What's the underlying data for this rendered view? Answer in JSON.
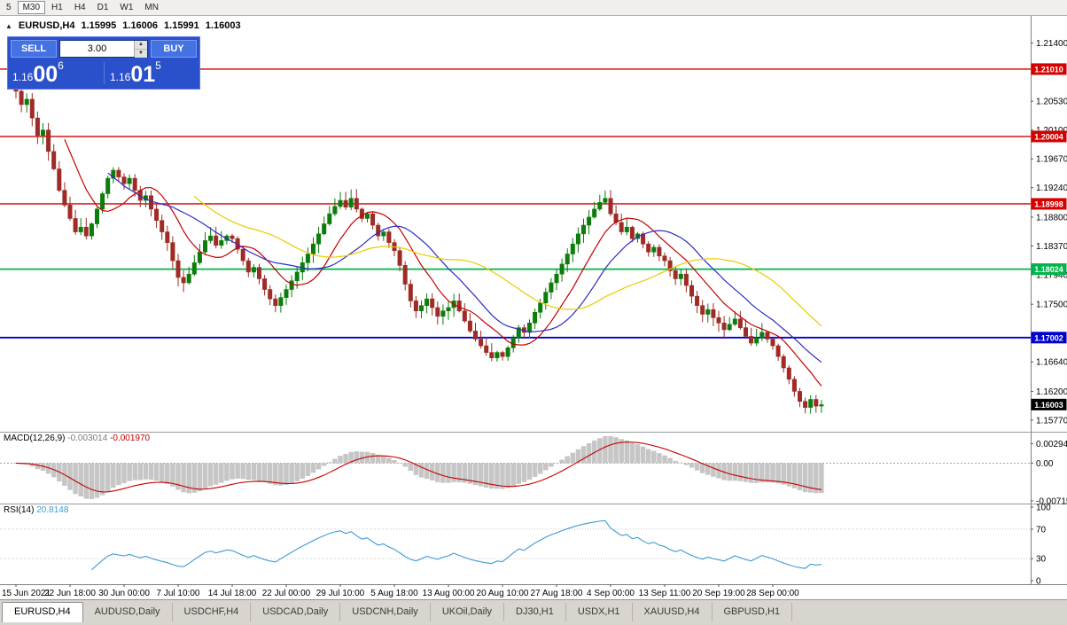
{
  "toolbar": {
    "timeframes": [
      {
        "label": "5",
        "active": false
      },
      {
        "label": "M30",
        "active": true
      },
      {
        "label": "H1",
        "active": false
      },
      {
        "label": "H4",
        "active": false
      },
      {
        "label": "D1",
        "active": false
      },
      {
        "label": "W1",
        "active": false
      },
      {
        "label": "MN",
        "active": false
      }
    ]
  },
  "chart_header": {
    "symbol": "EURUSD,H4",
    "open": "1.15995",
    "high": "1.16006",
    "low": "1.15991",
    "close": "1.16003"
  },
  "trade_panel": {
    "sell_label": "SELL",
    "buy_label": "BUY",
    "volume": "3.00",
    "sell_price_small": "1.16",
    "sell_price_big": "00",
    "sell_price_sup": "6",
    "buy_price_small": "1.16",
    "buy_price_big": "01",
    "buy_price_sup": "5"
  },
  "indicators": {
    "macd": {
      "name": "MACD(12,26,9)",
      "value1": "-0.003014",
      "value2": "-0.001970"
    },
    "rsi": {
      "name": "RSI(14)",
      "value": "20.8148"
    }
  },
  "tabs": [
    {
      "label": "EURUSD,H4",
      "active": true
    },
    {
      "label": "AUDUSD,Daily",
      "active": false
    },
    {
      "label": "USDCHF,H4",
      "active": false
    },
    {
      "label": "USDCAD,Daily",
      "active": false
    },
    {
      "label": "USDCNH,Daily",
      "active": false
    },
    {
      "label": "UKOil,Daily",
      "active": false
    },
    {
      "label": "DJ30,H1",
      "active": false
    },
    {
      "label": "USDX,H1",
      "active": false
    },
    {
      "label": "XAUUSD,H4",
      "active": false
    },
    {
      "label": "GBPUSD,H1",
      "active": false
    }
  ],
  "chart_data": [
    {
      "type": "candlestick",
      "symbol": "EURUSD",
      "timeframe": "H4",
      "title": "EURUSD,H4 1.15995 1.16006 1.15991 1.16003",
      "x_labels": [
        "15 Jun 2021",
        "22 Jun 18:00",
        "30 Jun 00:00",
        "7 Jul 10:00",
        "14 Jul 18:00",
        "22 Jul 00:00",
        "29 Jul 10:00",
        "5 Aug 18:00",
        "13 Aug 00:00",
        "20 Aug 10:00",
        "27 Aug 18:00",
        "4 Sep 00:00",
        "13 Sep 11:00",
        "20 Sep 19:00",
        "28 Sep 00:00"
      ],
      "y_tick_labels": [
        "1.21400",
        "1.20530",
        "1.20100",
        "1.19670",
        "1.19240",
        "1.18800",
        "1.18370",
        "1.17940",
        "1.17500",
        "1.16640",
        "1.16200",
        "1.15770"
      ],
      "y_range": [
        1.1565,
        1.2175
      ],
      "grid": false,
      "note": "close series estimated from pixels at ~H12 granularity; candles synthesized from consecutive closes",
      "closes": [
        1.2068,
        1.2048,
        1.2056,
        1.2028,
        1.2002,
        1.201,
        1.1978,
        1.1952,
        1.192,
        1.1898,
        1.1878,
        1.1858,
        1.1865,
        1.1852,
        1.187,
        1.1892,
        1.1915,
        1.1938,
        1.195,
        1.194,
        1.193,
        1.1938,
        1.192,
        1.1905,
        1.1912,
        1.1892,
        1.1875,
        1.1858,
        1.1842,
        1.1815,
        1.179,
        1.1782,
        1.1795,
        1.1812,
        1.1828,
        1.1845,
        1.1852,
        1.1838,
        1.1845,
        1.1852,
        1.1848,
        1.1832,
        1.1815,
        1.1798,
        1.1805,
        1.1788,
        1.1772,
        1.1758,
        1.1748,
        1.176,
        1.1772,
        1.1785,
        1.1798,
        1.1812,
        1.1825,
        1.184,
        1.1855,
        1.187,
        1.1885,
        1.1896,
        1.1905,
        1.1895,
        1.1908,
        1.1892,
        1.1878,
        1.1885,
        1.1868,
        1.1852,
        1.1858,
        1.1842,
        1.183,
        1.1808,
        1.178,
        1.1755,
        1.174,
        1.1748,
        1.1758,
        1.1745,
        1.1732,
        1.174,
        1.1745,
        1.1755,
        1.174,
        1.1725,
        1.171,
        1.1698,
        1.1688,
        1.1678,
        1.167,
        1.1678,
        1.1672,
        1.1685,
        1.17,
        1.1715,
        1.1708,
        1.1722,
        1.1738,
        1.1752,
        1.1768,
        1.1782,
        1.1795,
        1.181,
        1.1825,
        1.184,
        1.1855,
        1.1868,
        1.188,
        1.1892,
        1.1902,
        1.1908,
        1.1885,
        1.1872,
        1.1858,
        1.1865,
        1.1848,
        1.1855,
        1.184,
        1.1828,
        1.1835,
        1.1822,
        1.1815,
        1.18,
        1.1788,
        1.1795,
        1.1778,
        1.1762,
        1.1748,
        1.1735,
        1.1742,
        1.173,
        1.1722,
        1.1712,
        1.172,
        1.1728,
        1.1715,
        1.1702,
        1.1692,
        1.17,
        1.1708,
        1.1698,
        1.1688,
        1.1672,
        1.1655,
        1.1638,
        1.162,
        1.1605,
        1.1596,
        1.1608,
        1.1598,
        1.16
      ],
      "up_color": "#0a7d0a",
      "down_color": "#9e2b25",
      "moving_averages": [
        {
          "period": 10,
          "color": "#c40000",
          "name": "fast-ma"
        },
        {
          "period": 18,
          "color": "#2d2dc8",
          "name": "mid-ma"
        },
        {
          "period": 34,
          "color": "#e7cb00",
          "name": "slow-ma"
        }
      ],
      "horizontal_lines": [
        {
          "label": "1.21010",
          "price": 1.2101,
          "color": "#d40000"
        },
        {
          "label": "1.20004",
          "price": 1.20004,
          "color": "#d40000"
        },
        {
          "label": "1.18998",
          "price": 1.18998,
          "color": "#d40000"
        },
        {
          "label": "1.18024",
          "price": 1.18024,
          "color": "#00b44b"
        },
        {
          "label": "1.17002",
          "price": 1.17002,
          "color": "#0000cd"
        }
      ],
      "current_price": {
        "label": "1.16003",
        "price": 1.16003,
        "box_color": "#000000"
      }
    },
    {
      "type": "macd",
      "label": "MACD(12,26,9)",
      "params": [
        12,
        26,
        9
      ],
      "current_macd": -0.003014,
      "current_signal": -0.00197,
      "y_tick_labels": [
        "0.00294",
        "0.00",
        "-0.00715"
      ],
      "histogram_color": "#c6c6c6",
      "signal_color": "#c40000",
      "derived_from": "closes of panel above"
    },
    {
      "type": "rsi",
      "label": "RSI(14)",
      "period": 14,
      "current_value": 20.8148,
      "y_tick_labels": [
        "100",
        "70",
        "30",
        "0"
      ],
      "levels": [
        70,
        30
      ],
      "line_color": "#3d9bd5",
      "derived_from": "closes of panel above"
    }
  ]
}
